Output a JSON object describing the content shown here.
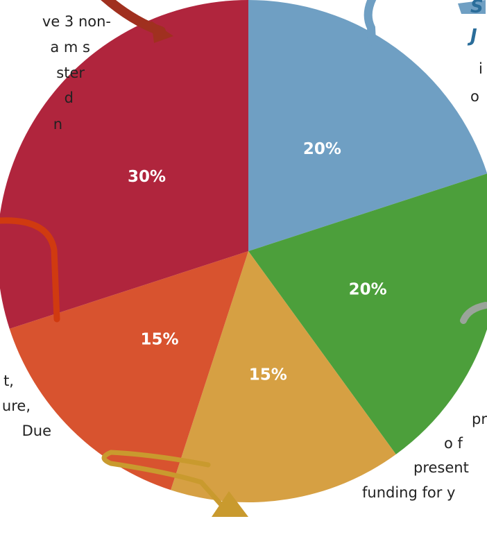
{
  "chart_data": {
    "type": "pie",
    "categories": [
      null,
      null,
      null,
      null,
      null
    ],
    "values": [
      20,
      20,
      15,
      15,
      30
    ],
    "value_labels": [
      "20%",
      "20%",
      "15%",
      "15%",
      "30%"
    ],
    "colors": [
      "#6f9fc3",
      "#4c9f3b",
      "#d6a043",
      "#d8532f",
      "#b0253d"
    ],
    "annotations": [
      "ve 3 non-",
      "a m s",
      "ster",
      "d",
      "n",
      "t,",
      "ure,",
      "Due",
      "S",
      "J",
      "i n",
      "o",
      "pr",
      "o f",
      "present",
      "funding for y"
    ]
  }
}
